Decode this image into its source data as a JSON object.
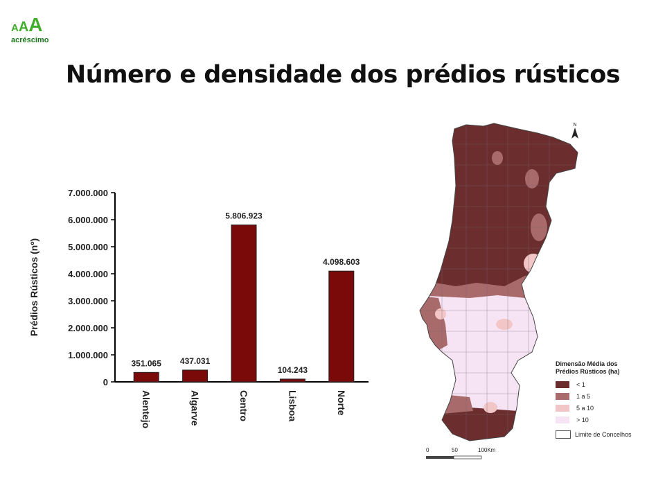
{
  "logo": {
    "letters": [
      "A",
      "A",
      "A"
    ],
    "text": "acréscimo"
  },
  "title": "Número e densidade dos prédios rústicos",
  "chart_data": {
    "type": "bar",
    "title": "",
    "xlabel": "",
    "ylabel": "Prédios Rústicos (nº)",
    "categories": [
      "Alentejo",
      "Algarve",
      "Centro",
      "Lisboa",
      "Norte"
    ],
    "values": [
      351065,
      437031,
      5806923,
      104243,
      4098603
    ],
    "value_labels": [
      "351.065",
      "437.031",
      "5.806.923",
      "104.243",
      "4.098.603"
    ],
    "ylim": [
      0,
      7000000
    ],
    "yticks": [
      0,
      1000000,
      2000000,
      3000000,
      4000000,
      5000000,
      6000000,
      7000000
    ],
    "ytick_labels": [
      "0",
      "1.000.000",
      "2.000.000",
      "3.000.000",
      "4.000.000",
      "5.000.000",
      "6.000.000",
      "7.000.000"
    ],
    "bar_color": "#7a0a0a",
    "grid": false
  },
  "map": {
    "north_arrow": "north-arrow-icon",
    "legend_title": "Dimensão Média dos Prédios Rústicos (ha)",
    "legend": [
      {
        "label": "< 1",
        "color": "#6b2d2d"
      },
      {
        "label": "1 a 5",
        "color": "#a86a6a"
      },
      {
        "label": "5 a 10",
        "color": "#f2c6c6"
      },
      {
        "label": "> 10",
        "color": "#f6e4f4"
      }
    ],
    "border_label": "Limite de Concelhos",
    "scale_labels": [
      "0",
      "50",
      "100Km"
    ]
  }
}
